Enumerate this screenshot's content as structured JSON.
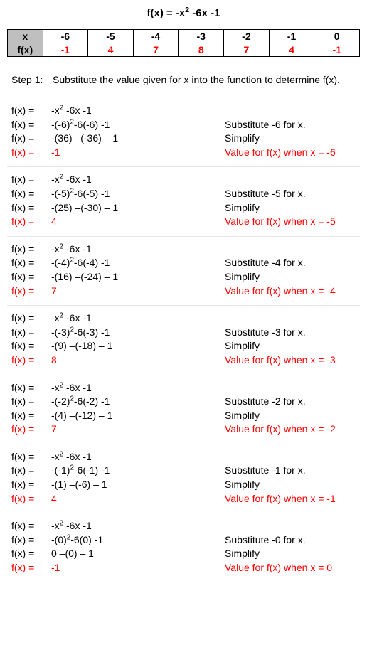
{
  "title_html": "f(x) = -x<sup>2</sup> -6x -1",
  "table": {
    "header_label": "x",
    "row_label": "f(x)",
    "xs": [
      "-6",
      "-5",
      "-4",
      "-3",
      "-2",
      "-1",
      "0"
    ],
    "fxs": [
      "-1",
      "4",
      "7",
      "8",
      "7",
      "4",
      "-1"
    ]
  },
  "step": {
    "label": "Step 1:",
    "text": "Substitute the value given for x into the function to determine f(x)."
  },
  "blocks": [
    {
      "lines": [
        {
          "l": "f(x) = ",
          "m": "-x<sup>2</sup> -6x -1",
          "r": ""
        },
        {
          "l": "f(x) = ",
          "m": "-(-6)<sup>2</sup>-6(-6)  -1",
          "r": "Substitute -6 for x."
        },
        {
          "l": "f(x) = ",
          "m": "-(36) –(-36) – 1",
          "r": "Simplify"
        },
        {
          "l": "f(x) = ",
          "m": "-1",
          "r": "Value for f(x) when x  = -6",
          "red": true
        }
      ]
    },
    {
      "lines": [
        {
          "l": "f(x) = ",
          "m": "-x<sup>2</sup> -6x -1",
          "r": ""
        },
        {
          "l": "f(x) = ",
          "m": "-(-5)<sup>2</sup>-6(-5)  -1",
          "r": "Substitute -5 for x."
        },
        {
          "l": "f(x) = ",
          "m": "-(25) –(-30) – 1",
          "r": "Simplify"
        },
        {
          "l": "f(x) = ",
          "m": "4",
          "r": "Value for f(x) when x  = -5",
          "red": true
        }
      ]
    },
    {
      "lines": [
        {
          "l": "f(x) = ",
          "m": "-x<sup>2</sup> -6x -1",
          "r": ""
        },
        {
          "l": "f(x) = ",
          "m": "-(-4)<sup>2</sup>-6(-4)  -1",
          "r": "Substitute -4 for x."
        },
        {
          "l": "f(x) = ",
          "m": "-(16) –(-24) – 1",
          "r": "Simplify"
        },
        {
          "l": "f(x) = ",
          "m": "7",
          "r": "Value for f(x) when x  = -4",
          "red": true
        }
      ]
    },
    {
      "lines": [
        {
          "l": "f(x) = ",
          "m": "-x<sup>2</sup> -6x -1",
          "r": ""
        },
        {
          "l": "f(x) = ",
          "m": "-(-3)<sup>2</sup>-6(-3)  -1",
          "r": "Substitute -3 for x."
        },
        {
          "l": "f(x) = ",
          "m": "-(9) –(-18) – 1",
          "r": "Simplify"
        },
        {
          "l": "f(x) = ",
          "m": "8",
          "r": "Value for f(x) when x  = -3",
          "red": true
        }
      ]
    },
    {
      "lines": [
        {
          "l": "f(x) = ",
          "m": "-x<sup>2</sup> -6x -1",
          "r": ""
        },
        {
          "l": "f(x) = ",
          "m": "-(-2)<sup>2</sup>-6(-2)  -1",
          "r": "Substitute -2 for x."
        },
        {
          "l": "f(x) = ",
          "m": "-(4) –(-12) – 1",
          "r": "Simplify"
        },
        {
          "l": "f(x) = ",
          "m": "7",
          "r": "Value for f(x) when x  = -2",
          "red": true
        }
      ]
    },
    {
      "lines": [
        {
          "l": "f(x) = ",
          "m": "-x<sup>2</sup> -6x -1",
          "r": ""
        },
        {
          "l": "f(x) = ",
          "m": "-(-1)<sup>2</sup>-6(-1)  -1",
          "r": "Substitute -1 for x."
        },
        {
          "l": "f(x) = ",
          "m": "-(1) –(-6) – 1",
          "r": "Simplify"
        },
        {
          "l": "f(x) = ",
          "m": "4",
          "r": "Value for f(x) when x  = -1",
          "red": true
        }
      ]
    },
    {
      "lines": [
        {
          "l": "f(x) = ",
          "m": "-x<sup>2</sup> -6x -1",
          "r": ""
        },
        {
          "l": "f(x) = ",
          "m": "-(0)<sup>2</sup>-6(0)  -1",
          "r": "Substitute -0 for x."
        },
        {
          "l": "f(x) = ",
          "m": "0 –(0) – 1",
          "r": "Simplify"
        },
        {
          "l": "f(x) = ",
          "m": "-1",
          "r": "Value for f(x) when x  = 0",
          "red": true
        }
      ]
    }
  ]
}
